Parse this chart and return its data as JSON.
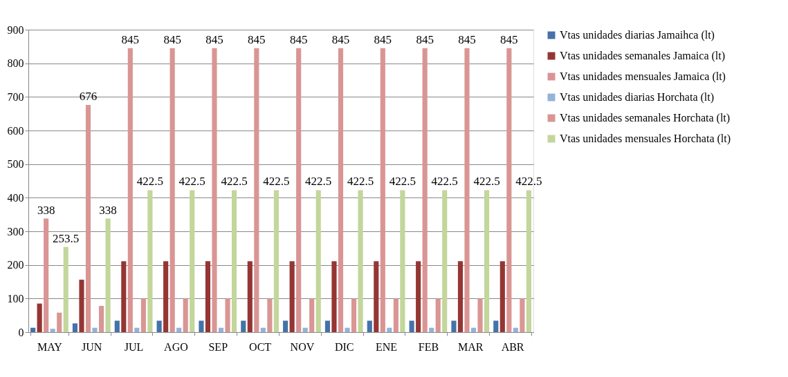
{
  "chart_data": {
    "type": "bar",
    "categories": [
      "MAY",
      "JUN",
      "JUL",
      "AGO",
      "SEP",
      "OCT",
      "NOV",
      "DIC",
      "ENE",
      "FEB",
      "MAR",
      "ABR"
    ],
    "ylim": [
      0,
      900
    ],
    "yticks": [
      0,
      100,
      200,
      300,
      400,
      500,
      600,
      700,
      800,
      900
    ],
    "grid": "y",
    "legend": "right",
    "series": [
      {
        "name": "Vtas unidades diarias Jamaihca  (lt)",
        "color": "#4572a7",
        "values": [
          13,
          26,
          34,
          34,
          34,
          34,
          34,
          34,
          34,
          34,
          34,
          34
        ]
      },
      {
        "name": "Vtas unidades semanales Jamaica (lt)",
        "color": "#943634",
        "values": [
          85,
          156,
          211,
          211,
          211,
          211,
          211,
          211,
          211,
          211,
          211,
          211
        ]
      },
      {
        "name": "Vtas unidades mensuales Jamaica (lt)",
        "color": "#d99594",
        "values": [
          338,
          676,
          845,
          845,
          845,
          845,
          845,
          845,
          845,
          845,
          845,
          845
        ],
        "value_labels": [
          "338",
          "676",
          "845",
          "845",
          "845",
          "845",
          "845",
          "845",
          "845",
          "845",
          "845",
          "845"
        ]
      },
      {
        "name": "Vtas unidades diarias Horchata (lt)",
        "color": "#95b3d7",
        "values": [
          10,
          13,
          13,
          13,
          13,
          13,
          13,
          13,
          13,
          13,
          13,
          13
        ]
      },
      {
        "name": "Vtas unidades semanales Horchata (lt)",
        "color": "#d99694",
        "values": [
          58,
          78,
          100,
          100,
          100,
          100,
          100,
          100,
          100,
          100,
          100,
          100
        ]
      },
      {
        "name": "Vtas unidades mensuales Horchata (lt)",
        "color": "#c3d69b",
        "values": [
          253.5,
          338,
          422.5,
          422.5,
          422.5,
          422.5,
          422.5,
          422.5,
          422.5,
          422.5,
          422.5,
          422.5
        ],
        "value_labels": [
          "253.5",
          "338",
          "422.5",
          "422.5",
          "422.5",
          "422.5",
          "422.5",
          "422.5",
          "422.5",
          "422.5",
          "422.5",
          "422.5"
        ]
      }
    ]
  }
}
